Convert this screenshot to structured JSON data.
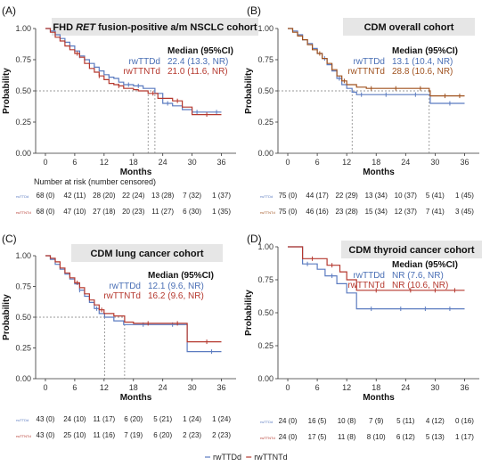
{
  "legend": {
    "items": [
      {
        "name": "rwTTDd",
        "color": "#5b7bc0"
      },
      {
        "name": "rwTTNTd",
        "color": "#b5382e"
      }
    ]
  },
  "chart_data": [
    {
      "type": "line",
      "panel_label": "(A)",
      "title_pre": "FHD ",
      "title_em": "RET",
      "title_post": " fusion-positive a/m NSCLC cohort",
      "xlabel": "Months",
      "ylabel": "Probability",
      "xlim": [
        -2,
        39
      ],
      "ylim": [
        0,
        1
      ],
      "xticks": [
        0,
        6,
        12,
        18,
        24,
        30,
        36
      ],
      "yticks": [
        "0.00",
        "0.25",
        "0.50",
        "0.75",
        "1.00"
      ],
      "median_header": "Median (95%CI)",
      "median_rows": [
        {
          "name": "rwTTDd",
          "value": "22.4 (13.3, NR)",
          "color": "#4a6fb5"
        },
        {
          "name": "rwTTNTd",
          "value": "21.0 (11.6, NR)",
          "color": "#b5382e"
        }
      ],
      "median_times": [
        21.0,
        22.4
      ],
      "risk_title": "Number at risk (number censored)",
      "risk_rows": [
        {
          "label": "rwTTDd",
          "cells": [
            "68 (0)",
            "42 (11)",
            "28 (20)",
            "22 (24)",
            "13 (28)",
            "7 (32)",
            "1 (37)"
          ]
        },
        {
          "label": "rwTTNTd",
          "cells": [
            "68 (0)",
            "47 (10)",
            "27 (18)",
            "20 (23)",
            "11 (27)",
            "6 (30)",
            "1 (35)"
          ]
        }
      ],
      "series": [
        {
          "name": "rwTTDd",
          "color": "#5b7bc0",
          "x": [
            0,
            1,
            2,
            3,
            4,
            5,
            6,
            7,
            8,
            9,
            10,
            11,
            12,
            13,
            14,
            15,
            16,
            18,
            20,
            22.4,
            24,
            26,
            28,
            30,
            36
          ],
          "y": [
            1.0,
            0.98,
            0.95,
            0.92,
            0.89,
            0.86,
            0.82,
            0.78,
            0.75,
            0.72,
            0.69,
            0.66,
            0.63,
            0.61,
            0.6,
            0.57,
            0.55,
            0.54,
            0.52,
            0.48,
            0.4,
            0.38,
            0.35,
            0.33,
            0.33
          ],
          "censor": [
            [
              7,
              0.78
            ],
            [
              10,
              0.69
            ],
            [
              13,
              0.61
            ],
            [
              17,
              0.55
            ],
            [
              19,
              0.54
            ],
            [
              25,
              0.4
            ],
            [
              31,
              0.33
            ],
            [
              35,
              0.33
            ]
          ]
        },
        {
          "name": "rwTTNTd",
          "color": "#b5382e",
          "x": [
            0,
            1,
            2,
            3,
            4,
            5,
            6,
            7,
            8,
            9,
            10,
            11,
            12,
            13,
            14,
            15,
            16,
            18,
            19,
            21,
            23,
            26,
            28,
            30,
            36
          ],
          "y": [
            1.0,
            0.97,
            0.93,
            0.9,
            0.86,
            0.83,
            0.8,
            0.77,
            0.72,
            0.68,
            0.65,
            0.62,
            0.59,
            0.56,
            0.55,
            0.54,
            0.52,
            0.51,
            0.5,
            0.48,
            0.44,
            0.42,
            0.37,
            0.31,
            0.31
          ],
          "censor": [
            [
              6.5,
              0.8
            ],
            [
              11,
              0.62
            ],
            [
              15,
              0.54
            ],
            [
              22,
              0.48
            ],
            [
              27,
              0.42
            ],
            [
              33,
              0.31
            ]
          ]
        }
      ]
    },
    {
      "type": "line",
      "panel_label": "(B)",
      "title_pre": "CDM overall cohort",
      "title_em": "",
      "title_post": "",
      "xlabel": "Months",
      "ylabel": "Probability",
      "xlim": [
        -2,
        39
      ],
      "ylim": [
        0,
        1
      ],
      "xticks": [
        0,
        6,
        12,
        18,
        24,
        30,
        36
      ],
      "yticks": [
        "0.00",
        "0.25",
        "0.50",
        "0.75",
        "1.00"
      ],
      "median_header": "Median (95%CI)",
      "median_rows": [
        {
          "name": "rwTTDd",
          "value": "13.1 (10.4, NR)",
          "color": "#4a6fb5"
        },
        {
          "name": "rwTTNTd",
          "value": "28.8 (10.6, NR)",
          "color": "#a0521f"
        }
      ],
      "median_times": [
        13.1,
        28.8
      ],
      "risk_title": "",
      "risk_rows": [
        {
          "label": "rwTTDd",
          "cells": [
            "75 (0)",
            "44 (17)",
            "22 (29)",
            "13 (34)",
            "10 (37)",
            "5 (41)",
            "1 (45)"
          ]
        },
        {
          "label": "rwTTNTd",
          "cells": [
            "75 (0)",
            "46 (16)",
            "23 (28)",
            "15 (34)",
            "12 (37)",
            "7 (41)",
            "3 (45)"
          ]
        }
      ],
      "series": [
        {
          "name": "rwTTDd",
          "color": "#5b7bc0",
          "x": [
            0,
            1,
            2,
            3,
            4,
            5,
            6,
            7,
            8,
            9,
            10,
            11,
            12,
            13.1,
            14,
            16,
            18,
            24,
            28.8,
            29,
            36
          ],
          "y": [
            1.0,
            0.98,
            0.95,
            0.91,
            0.88,
            0.84,
            0.8,
            0.76,
            0.71,
            0.66,
            0.6,
            0.55,
            0.52,
            0.49,
            0.47,
            0.47,
            0.47,
            0.47,
            0.47,
            0.4,
            0.4
          ],
          "censor": [
            [
              7.5,
              0.76
            ],
            [
              10.5,
              0.6
            ],
            [
              15,
              0.47
            ],
            [
              20,
              0.47
            ],
            [
              26,
              0.47
            ],
            [
              33,
              0.4
            ]
          ]
        },
        {
          "name": "rwTTNTd",
          "color": "#a0521f",
          "x": [
            0,
            1,
            2,
            3,
            4,
            5,
            6,
            7,
            8,
            9,
            10,
            11,
            12,
            14,
            16,
            18,
            24,
            28.8,
            29,
            36
          ],
          "y": [
            1.0,
            0.97,
            0.94,
            0.91,
            0.87,
            0.83,
            0.8,
            0.76,
            0.72,
            0.67,
            0.62,
            0.58,
            0.55,
            0.53,
            0.52,
            0.52,
            0.52,
            0.5,
            0.46,
            0.46
          ],
          "censor": [
            [
              6.5,
              0.8
            ],
            [
              11.5,
              0.58
            ],
            [
              17,
              0.52
            ],
            [
              22,
              0.52
            ],
            [
              27,
              0.52
            ],
            [
              32,
              0.46
            ],
            [
              35,
              0.46
            ]
          ]
        }
      ]
    },
    {
      "type": "line",
      "panel_label": "(C)",
      "title_pre": "CDM lung cancer cohort",
      "title_em": "",
      "title_post": "",
      "xlabel": "Months",
      "ylabel": "Probability",
      "xlim": [
        -2,
        39
      ],
      "ylim": [
        0,
        1
      ],
      "xticks": [
        0,
        6,
        12,
        18,
        24,
        30,
        36
      ],
      "yticks": [
        "0.00",
        "0.25",
        "0.50",
        "0.75",
        "1.00"
      ],
      "median_header": "Median (95%CI)",
      "median_rows": [
        {
          "name": "rwTTDd",
          "value": "12.1 (9.6, NR)",
          "color": "#4a6fb5"
        },
        {
          "name": "rwTTNTd",
          "value": "16.2 (9.6, NR)",
          "color": "#b5382e"
        }
      ],
      "median_times": [
        12.1,
        16.2
      ],
      "risk_title": "",
      "risk_rows": [
        {
          "label": "rwTTDd",
          "cells": [
            "43 (0)",
            "24 (10)",
            "11 (17)",
            "6 (20)",
            "5 (21)",
            "1 (24)",
            "1 (24)"
          ]
        },
        {
          "label": "rwTTNTd",
          "cells": [
            "43 (0)",
            "25 (10)",
            "11 (16)",
            "7 (19)",
            "6 (20)",
            "2 (23)",
            "2 (23)"
          ]
        }
      ],
      "series": [
        {
          "name": "rwTTDd",
          "color": "#5b7bc0",
          "x": [
            0,
            1,
            2,
            3,
            4,
            5,
            6,
            7,
            8,
            9,
            10,
            11,
            12.1,
            14,
            16,
            18,
            24,
            29,
            36
          ],
          "y": [
            1.0,
            0.97,
            0.93,
            0.89,
            0.85,
            0.81,
            0.77,
            0.72,
            0.67,
            0.62,
            0.57,
            0.53,
            0.5,
            0.47,
            0.44,
            0.44,
            0.44,
            0.22,
            0.22
          ],
          "censor": [
            [
              7,
              0.72
            ],
            [
              10.5,
              0.57
            ],
            [
              20,
              0.44
            ],
            [
              26,
              0.44
            ],
            [
              34,
              0.22
            ]
          ]
        },
        {
          "name": "rwTTNTd",
          "color": "#b5382e",
          "x": [
            0,
            1,
            2,
            3,
            4,
            5,
            6,
            7,
            8,
            9,
            10,
            11,
            12,
            14,
            16.2,
            18,
            24,
            29,
            36
          ],
          "y": [
            1.0,
            0.98,
            0.95,
            0.9,
            0.86,
            0.82,
            0.78,
            0.74,
            0.69,
            0.64,
            0.6,
            0.56,
            0.53,
            0.51,
            0.46,
            0.45,
            0.45,
            0.3,
            0.3
          ],
          "censor": [
            [
              6.5,
              0.78
            ],
            [
              11.5,
              0.56
            ],
            [
              21,
              0.45
            ],
            [
              27,
              0.45
            ],
            [
              33,
              0.3
            ]
          ]
        }
      ]
    },
    {
      "type": "line",
      "panel_label": "(D)",
      "title_pre": "CDM thyroid cancer cohort",
      "title_em": "",
      "title_post": "",
      "xlabel": "Months",
      "ylabel": "Probability",
      "xlim": [
        -2,
        39
      ],
      "ylim": [
        0,
        1
      ],
      "xticks": [
        0,
        6,
        12,
        18,
        24,
        30,
        36
      ],
      "yticks": [
        "0.00",
        "0.25",
        "0.50",
        "0.75",
        "1.00"
      ],
      "median_header": "Median (95%CI)",
      "median_rows": [
        {
          "name": "rwTTDd",
          "value": "NR (7.6, NR)",
          "color": "#4a6fb5"
        },
        {
          "name": "rwTTNTd",
          "value": "NR (10.6, NR)",
          "color": "#b5382e"
        }
      ],
      "median_times": [],
      "risk_title": "",
      "risk_rows": [
        {
          "label": "rwTTDd",
          "cells": [
            "24 (0)",
            "16 (5)",
            "10 (8)",
            "7 (9)",
            "5 (11)",
            "4 (12)",
            "0 (16)"
          ]
        },
        {
          "label": "rwTTNTd",
          "cells": [
            "24 (0)",
            "17 (5)",
            "11 (8)",
            "8 (10)",
            "6 (12)",
            "5 (13)",
            "1 (17)"
          ]
        }
      ],
      "series": [
        {
          "name": "rwTTDd",
          "color": "#5b7bc0",
          "x": [
            0,
            2,
            3,
            6,
            7.6,
            10,
            12,
            14,
            36
          ],
          "y": [
            1.0,
            1.0,
            0.87,
            0.83,
            0.78,
            0.72,
            0.65,
            0.53,
            0.53
          ],
          "censor": [
            [
              4,
              0.87
            ],
            [
              9,
              0.78
            ],
            [
              17,
              0.53
            ],
            [
              23,
              0.53
            ],
            [
              28,
              0.53
            ],
            [
              33,
              0.53
            ]
          ]
        },
        {
          "name": "rwTTNTd",
          "color": "#b5382e",
          "x": [
            0,
            3,
            6,
            8,
            10.6,
            12,
            14,
            36
          ],
          "y": [
            1.0,
            0.91,
            0.91,
            0.86,
            0.81,
            0.75,
            0.67,
            0.67
          ],
          "censor": [
            [
              5,
              0.91
            ],
            [
              9,
              0.86
            ],
            [
              18,
              0.67
            ],
            [
              25,
              0.67
            ],
            [
              30,
              0.67
            ],
            [
              34,
              0.67
            ]
          ]
        }
      ]
    }
  ]
}
